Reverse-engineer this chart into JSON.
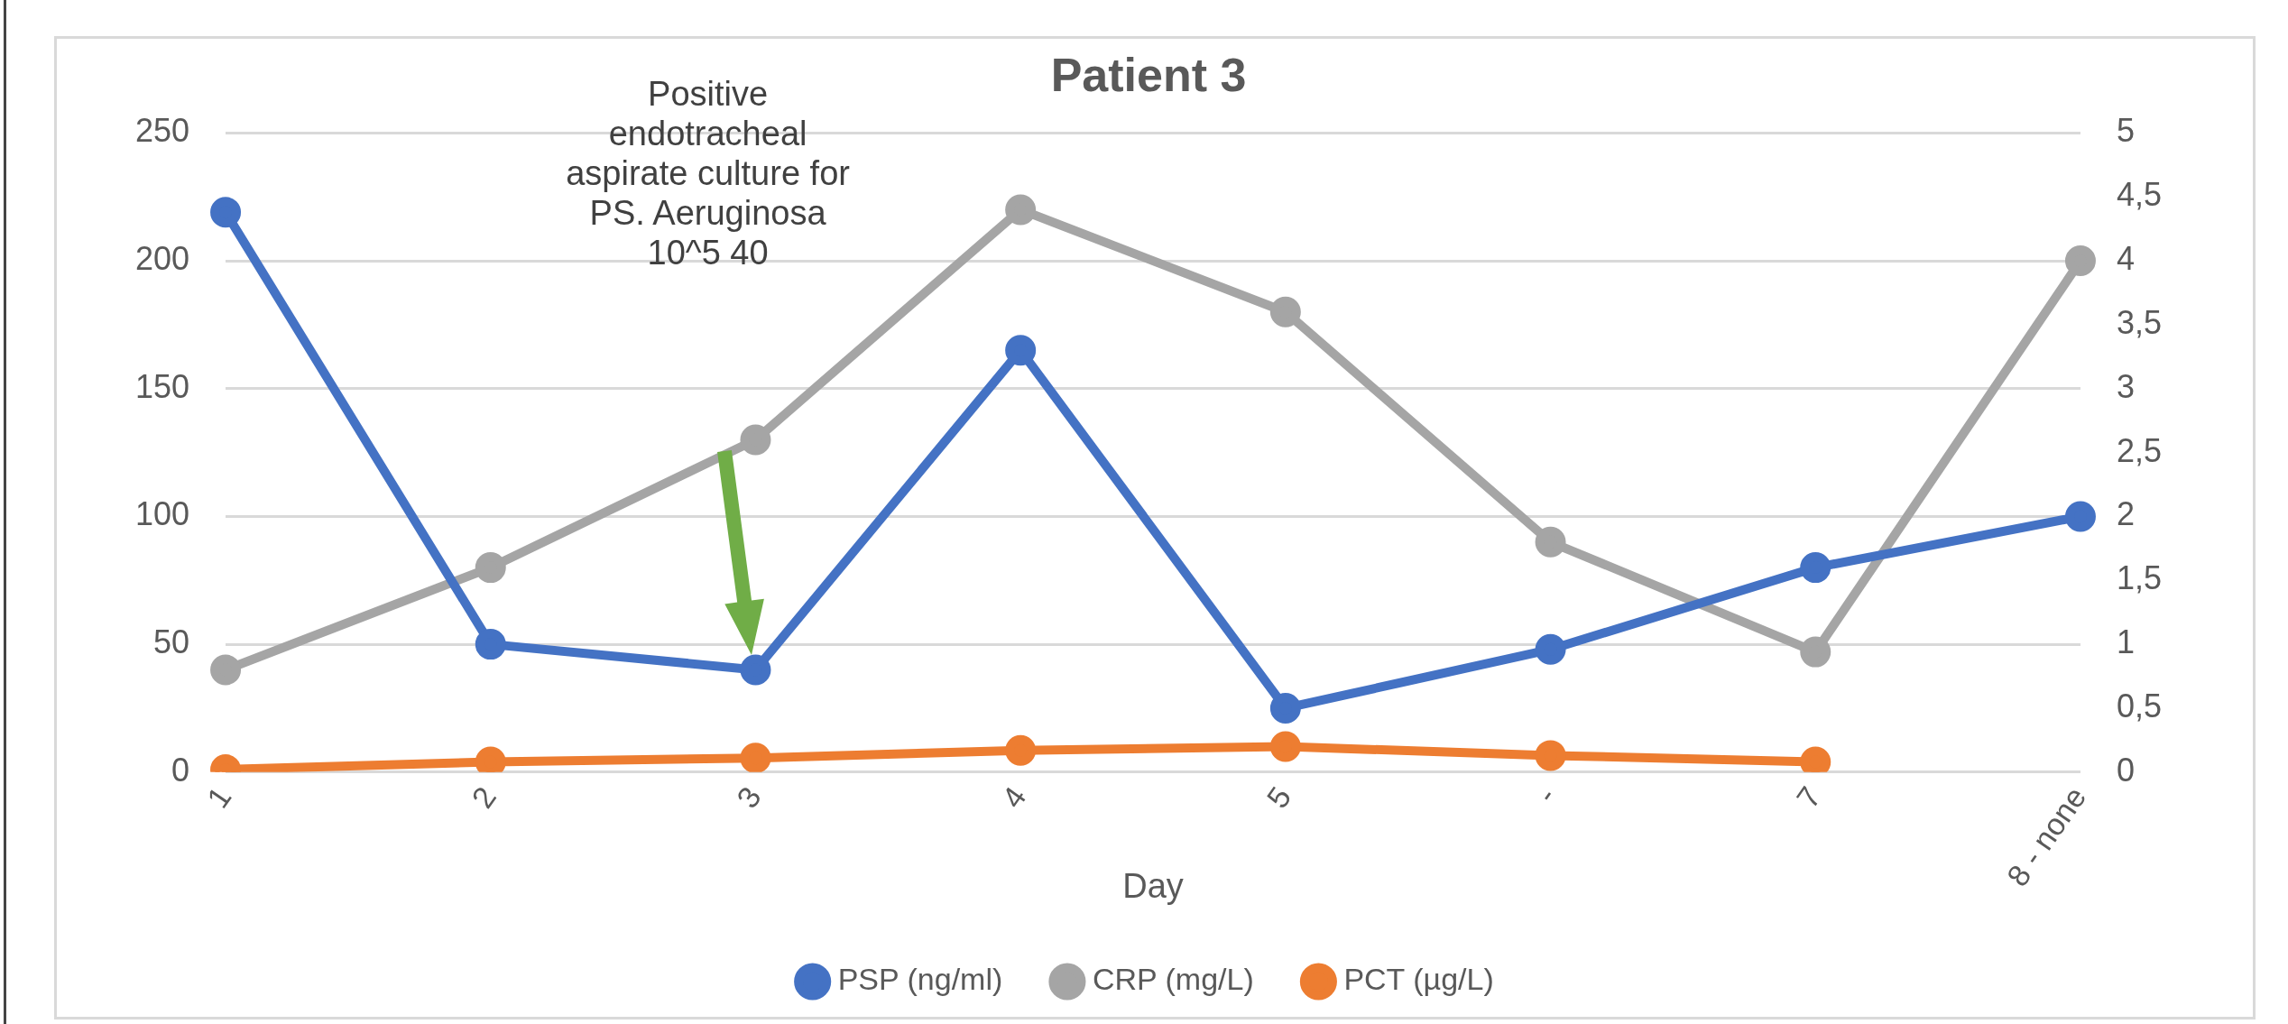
{
  "chart_data": {
    "type": "line",
    "title": "Patient 3",
    "xlabel": "Day",
    "categories": [
      "1",
      "2",
      "3",
      "4",
      "5",
      "-",
      "7",
      "8 - none"
    ],
    "series": [
      {
        "name": "PSP (ng/ml)",
        "color": "#4472c4",
        "values": [
          219,
          50,
          40,
          165,
          25,
          48,
          80,
          100
        ]
      },
      {
        "name": "CRP (mg/L)",
        "color": "#a5a5a5",
        "values": [
          40,
          80,
          130,
          220,
          180,
          90,
          47,
          200
        ]
      },
      {
        "name": "PCT (µg/L)",
        "color": "#ed7d31",
        "axis": "y2",
        "values": [
          0.02,
          0.08,
          0.11,
          0.17,
          0.2,
          0.13,
          0.08,
          null
        ]
      }
    ],
    "ylim": [
      0,
      250
    ],
    "yticks": [
      0,
      50,
      100,
      150,
      200,
      250
    ],
    "y2lim": [
      0,
      5
    ],
    "y2ticks": [
      0,
      {
        "value": 0.5,
        "label": "0,5"
      },
      1,
      {
        "value": 1.5,
        "label": "1,5"
      },
      2,
      {
        "value": 2.5,
        "label": "2,5"
      },
      3,
      {
        "value": 3.5,
        "label": "3,5"
      },
      4,
      {
        "value": 4.5,
        "label": "4,5"
      },
      5
    ],
    "annotations": [
      "Positive endotracheal aspirate culture for PS. Aeruginosa 10^5 40"
    ],
    "grid": "y",
    "legend": "bottom",
    "marker": "circle",
    "line_style": "solid"
  }
}
